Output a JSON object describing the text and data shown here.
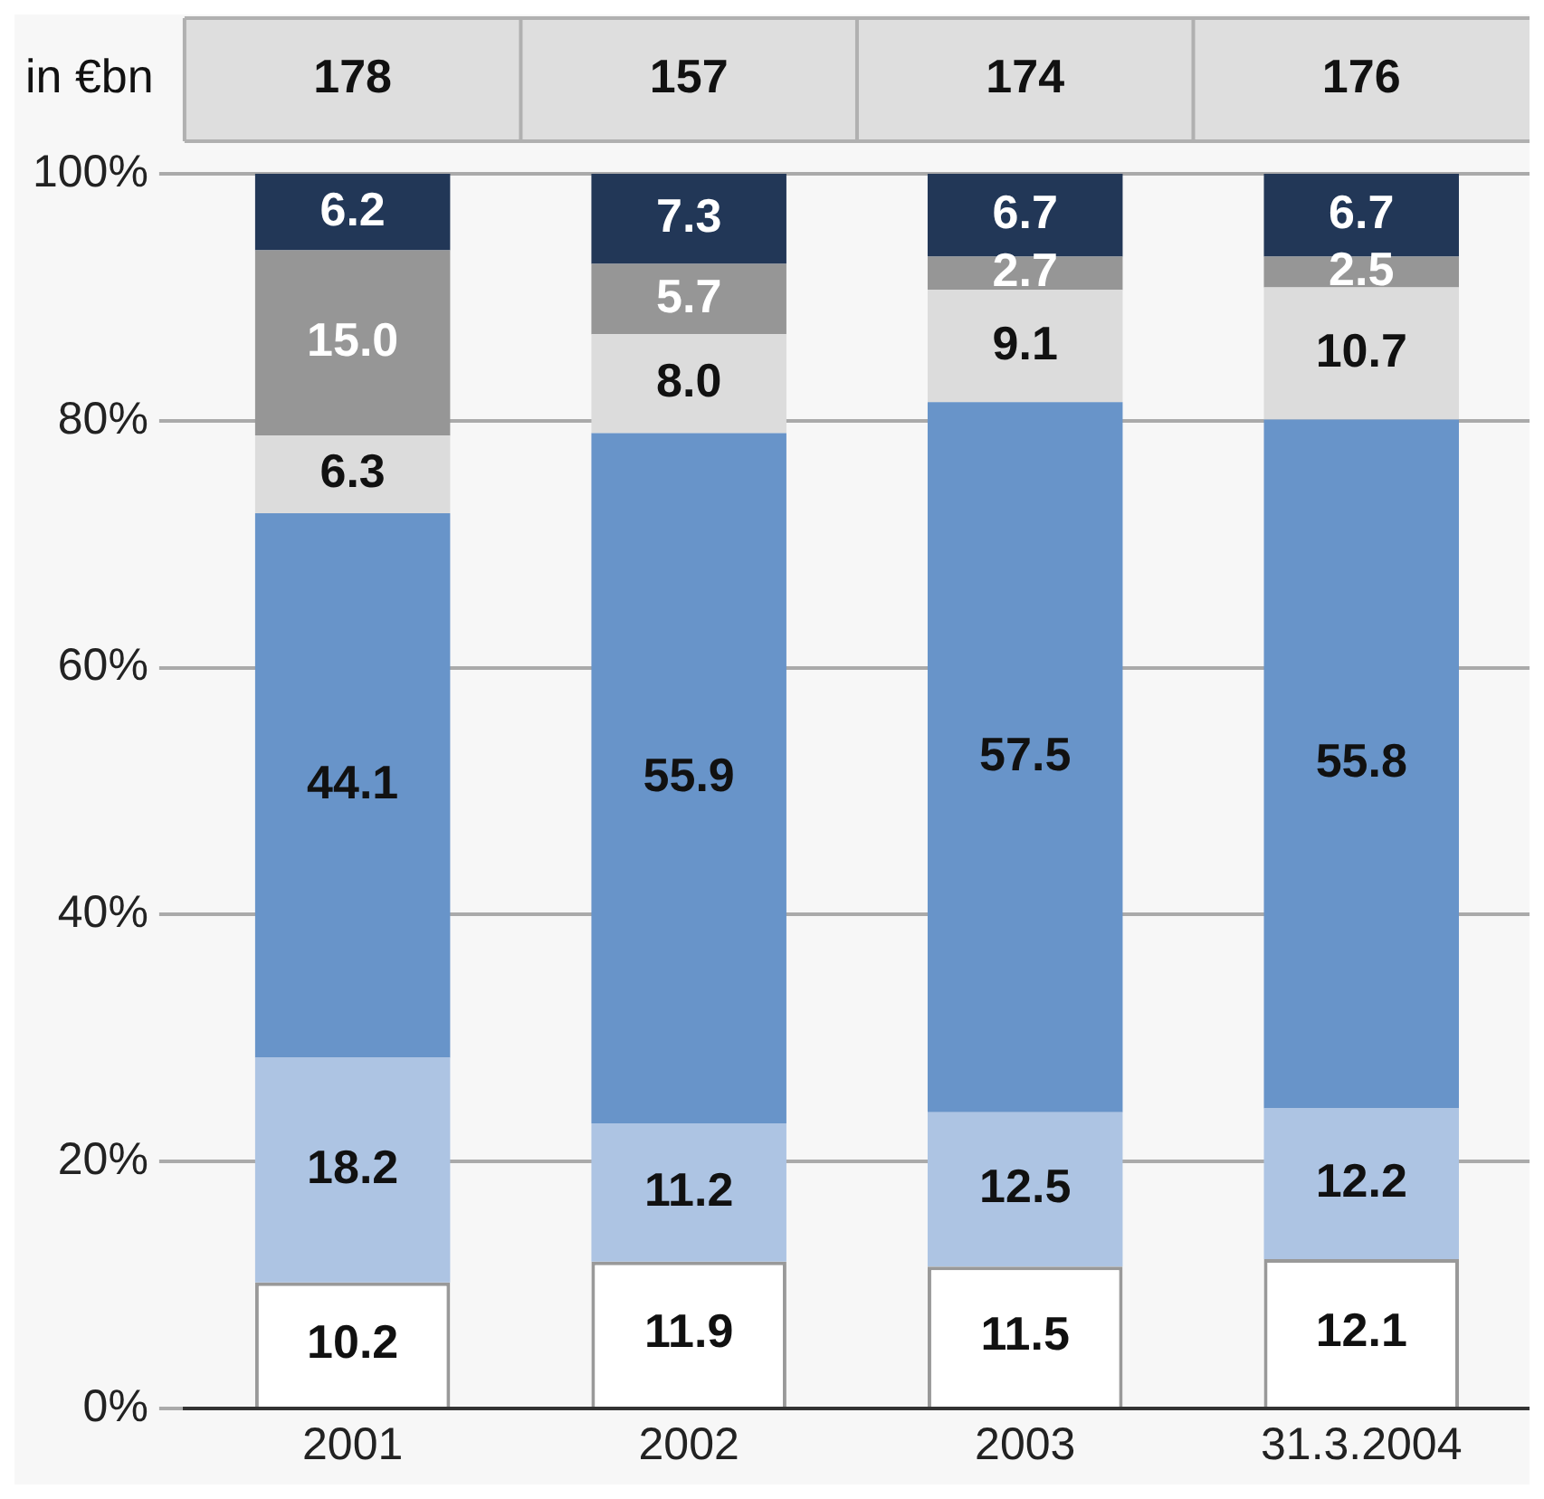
{
  "chart_data": {
    "type": "bar",
    "stacked": true,
    "categories": [
      "2001",
      "2002",
      "2003",
      "31.3.2004"
    ],
    "series": [
      {
        "color": "#ffffff",
        "values": [
          10.2,
          11.9,
          11.5,
          12.1
        ],
        "value_labels": [
          "10.2",
          "11.9",
          "11.5",
          "12.1"
        ]
      },
      {
        "color": "#adc4e3",
        "values": [
          18.2,
          11.2,
          12.5,
          12.2
        ],
        "value_labels": [
          "18.2",
          "11.2",
          "12.5",
          "12.2"
        ]
      },
      {
        "color": "#6894c9",
        "values": [
          44.1,
          55.9,
          57.5,
          55.8
        ],
        "value_labels": [
          "44.1",
          "55.9",
          "57.5",
          "55.8"
        ]
      },
      {
        "color": "#dcdcdc",
        "values": [
          6.3,
          8.0,
          9.1,
          10.7
        ],
        "value_labels": [
          "6.3",
          "8.0",
          "9.1",
          "10.7"
        ]
      },
      {
        "color": "#969696",
        "values": [
          15.0,
          5.7,
          2.7,
          2.5
        ],
        "value_labels": [
          "15.0",
          "5.7",
          "2.7",
          "2.5"
        ]
      },
      {
        "color": "#223757",
        "values": [
          6.2,
          7.3,
          6.7,
          6.7
        ],
        "value_labels": [
          "6.2",
          "7.3",
          "6.7",
          "6.7"
        ]
      }
    ],
    "ylim": [
      0,
      100
    ],
    "yticks": [
      {
        "value": 0,
        "label": "0%"
      },
      {
        "value": 20,
        "label": "20%"
      },
      {
        "value": 40,
        "label": "40%"
      },
      {
        "value": 60,
        "label": "60%"
      },
      {
        "value": 80,
        "label": "80%"
      },
      {
        "value": 100,
        "label": "100%"
      }
    ],
    "grid": "y",
    "legend": false,
    "annotations": [
      "in €bn",
      "178",
      "157",
      "174",
      "176"
    ]
  }
}
